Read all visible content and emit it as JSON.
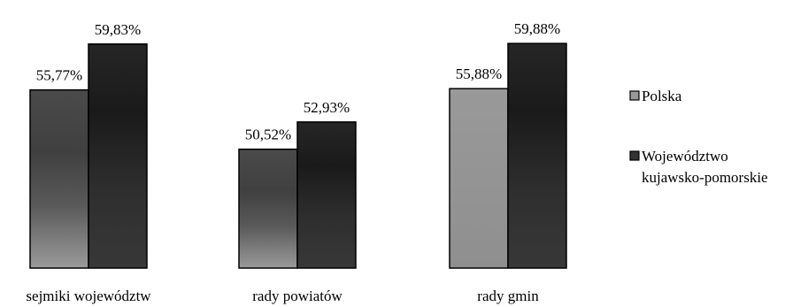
{
  "chart_data": {
    "type": "bar",
    "title": "",
    "xlabel": "",
    "ylabel": "",
    "categories": [
      "sejmiki województw",
      "rady powiatów",
      "rady gmin"
    ],
    "series": [
      {
        "name": "Polska",
        "values": [
          55.77,
          50.52,
          55.88
        ],
        "value_labels": [
          "55,77%",
          "50,52%",
          "55,88%"
        ],
        "color": "#999999"
      },
      {
        "name": "Województwo kujawsko-pomorskie",
        "values": [
          59.83,
          52.93,
          59.88
        ],
        "value_labels": [
          "59,83%",
          "52,93%",
          "59,88%"
        ],
        "color": "#1f1f1f"
      }
    ],
    "legend": {
      "position": "right",
      "items": [
        {
          "lines": [
            "Polska"
          ],
          "color": "#999999"
        },
        {
          "lines": [
            "Województwo",
            "kujawsko-pomorskie"
          ],
          "color": "#333333"
        }
      ]
    },
    "ylim": [
      0,
      100
    ],
    "grid": false,
    "baseline_value": 40
  }
}
